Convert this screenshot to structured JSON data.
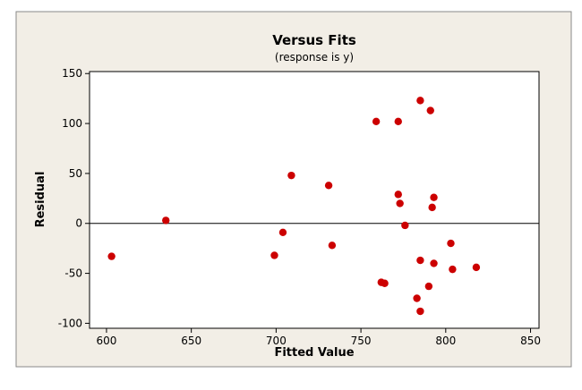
{
  "chart_data": {
    "type": "scatter",
    "title": "Versus Fits",
    "subtitle": "(response is y)",
    "xlabel": "Fitted Value",
    "ylabel": "Residual",
    "xlim": [
      590,
      855
    ],
    "ylim": [
      -105,
      152
    ],
    "xticks": [
      600,
      650,
      700,
      750,
      800,
      850
    ],
    "yticks": [
      -100,
      -50,
      0,
      50,
      100,
      150
    ],
    "reference_line_y": 0,
    "grid": false,
    "legend": "none",
    "series": [
      {
        "points": [
          [
            603,
            -33
          ],
          [
            635,
            3
          ],
          [
            699,
            -32
          ],
          [
            704,
            -9
          ],
          [
            709,
            48
          ],
          [
            731,
            38
          ],
          [
            733,
            -22
          ],
          [
            759,
            102
          ],
          [
            762,
            -59
          ],
          [
            764,
            -60
          ],
          [
            772,
            102
          ],
          [
            772,
            29
          ],
          [
            773,
            20
          ],
          [
            776,
            -2
          ],
          [
            783,
            -75
          ],
          [
            785,
            123
          ],
          [
            785,
            -37
          ],
          [
            785,
            -88
          ],
          [
            790,
            -63
          ],
          [
            791,
            113
          ],
          [
            792,
            16
          ],
          [
            793,
            26
          ],
          [
            793,
            -40
          ],
          [
            803,
            -20
          ],
          [
            804,
            -46
          ],
          [
            818,
            -44
          ]
        ]
      }
    ]
  },
  "colors": {
    "outer_background": "#f2eee6",
    "plot_background": "#ffffff",
    "point": "#cc0000",
    "axis": "#000000"
  }
}
